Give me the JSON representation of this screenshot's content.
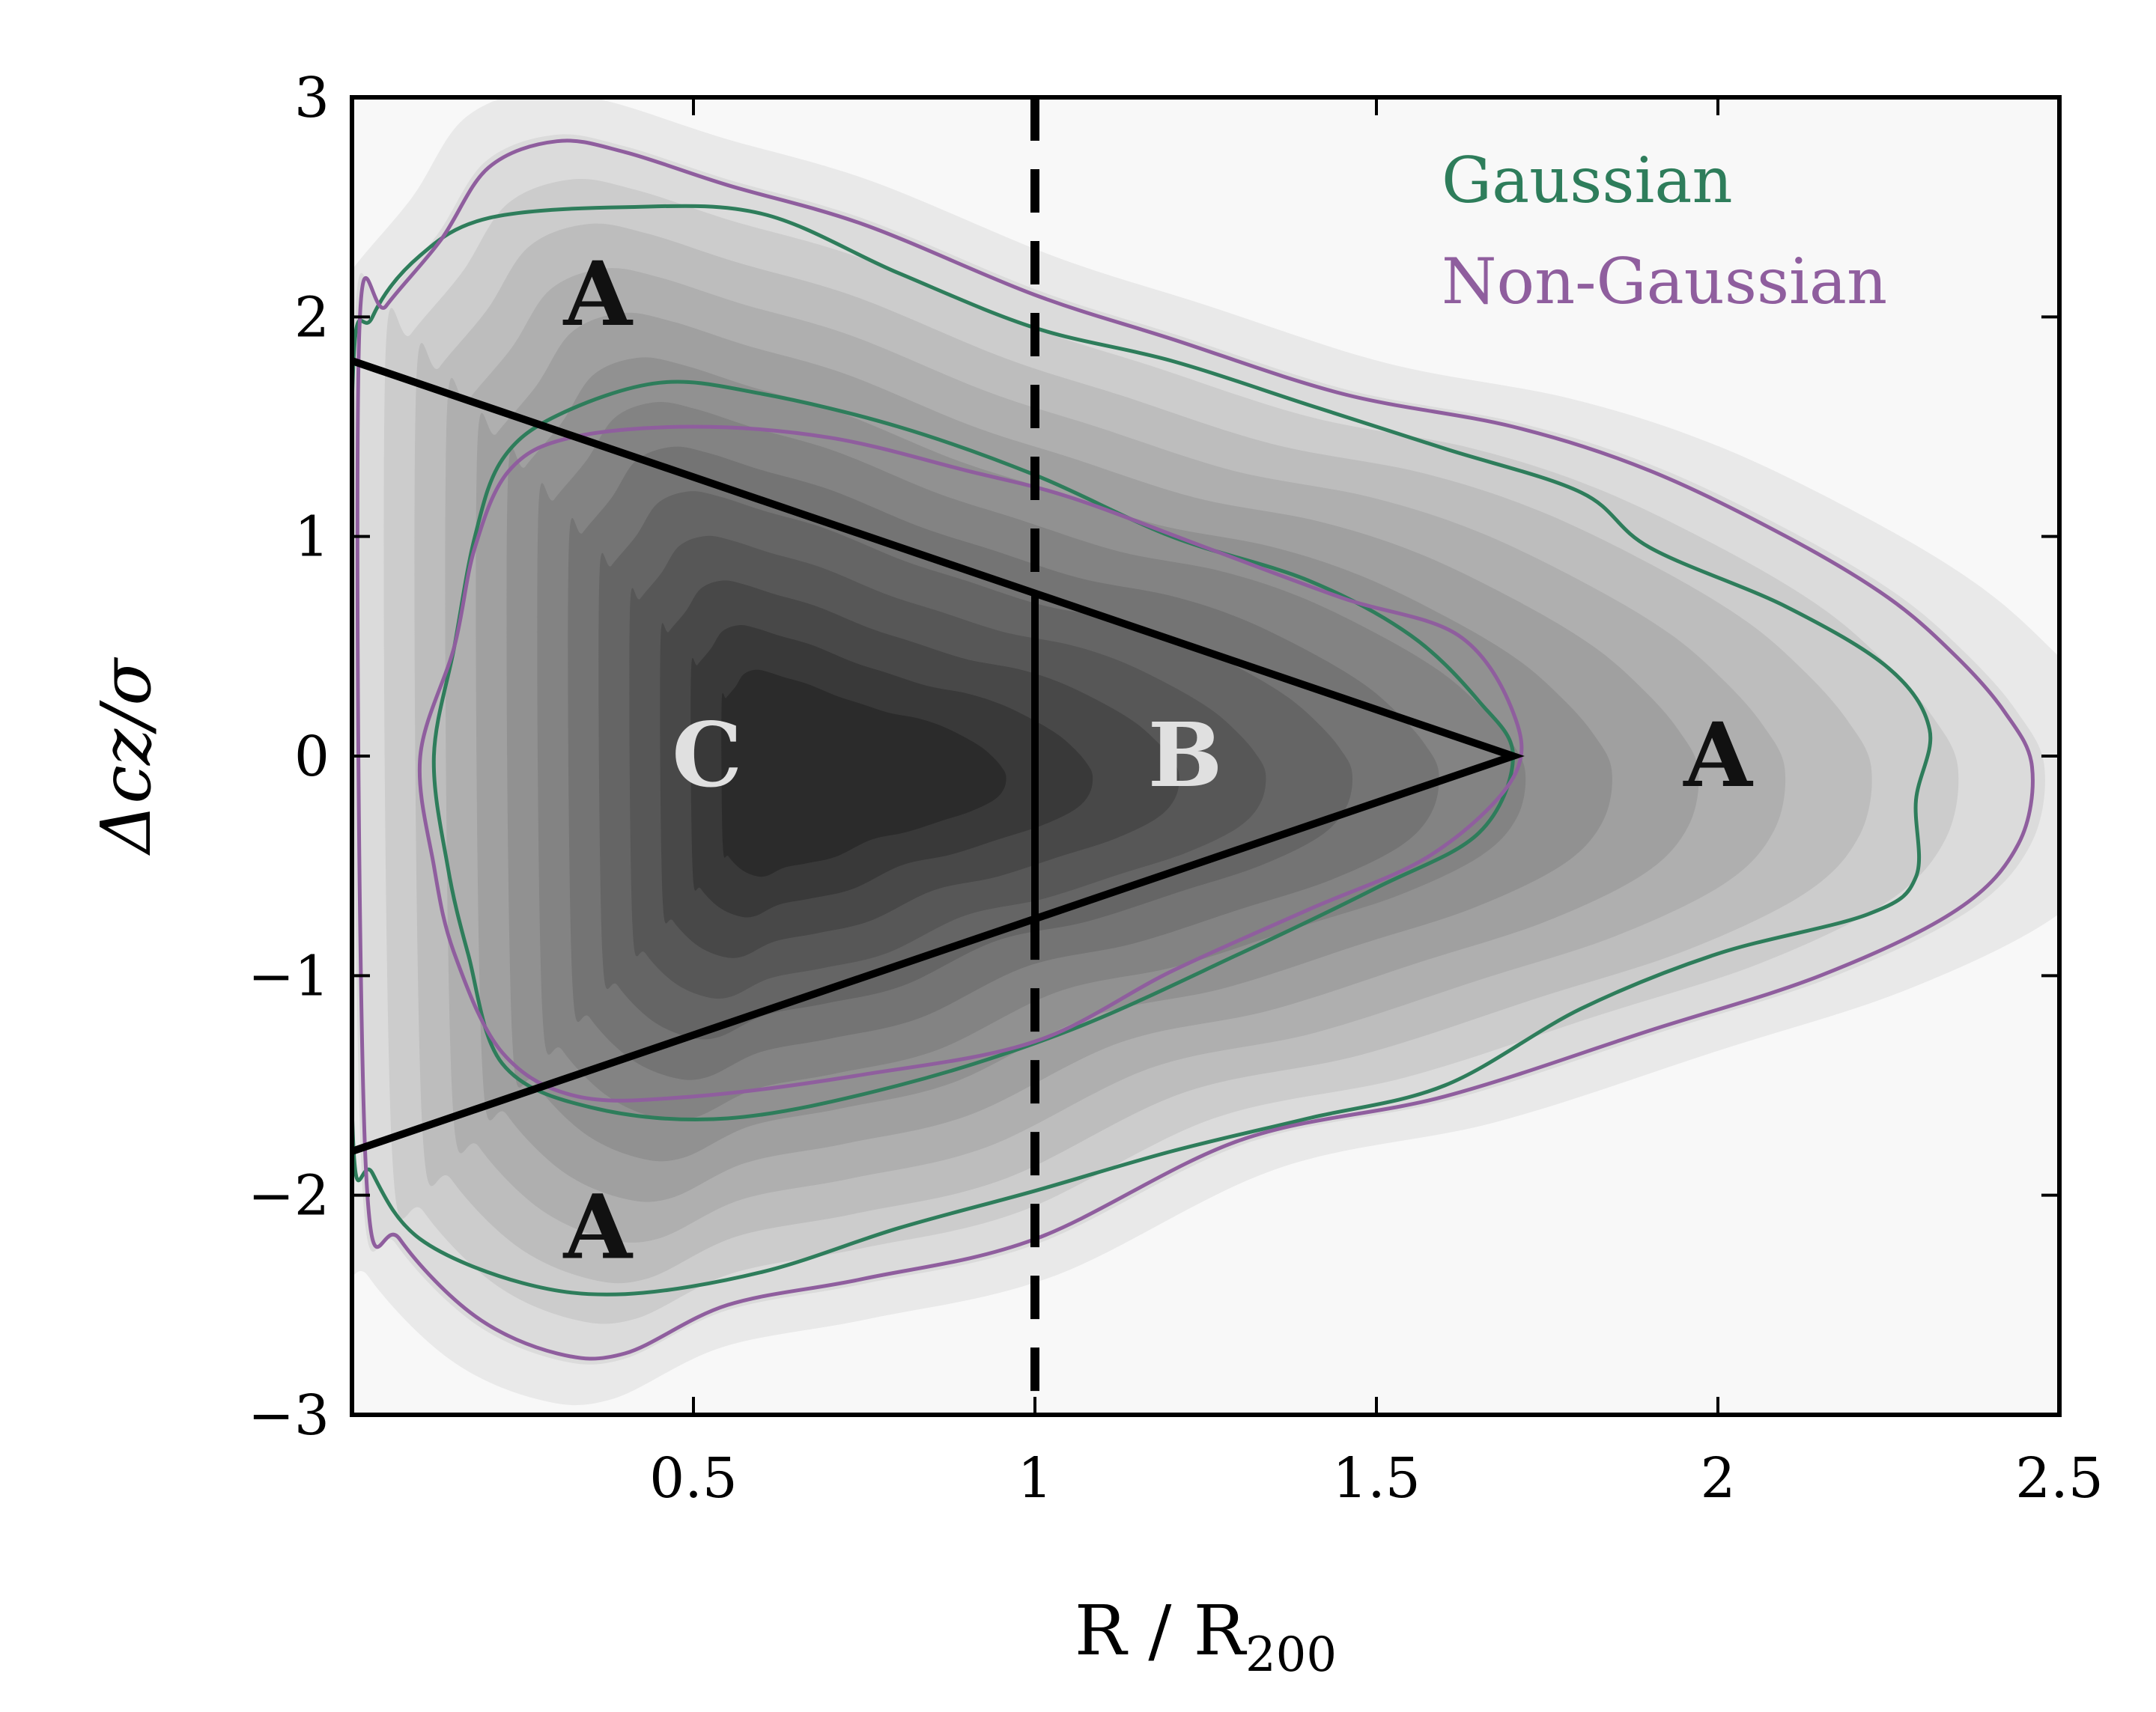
{
  "chart_data": {
    "type": "contour",
    "title": "",
    "xlabel": "R / R200",
    "ylabel": "Δcz/σ",
    "xlim": [
      0,
      2.5
    ],
    "ylim": [
      -3,
      3
    ],
    "x_ticks": [
      {
        "value": 0.5,
        "label": "0.5"
      },
      {
        "value": 1,
        "label": "1"
      },
      {
        "value": 1.5,
        "label": "1.5"
      },
      {
        "value": 2,
        "label": "2"
      },
      {
        "value": 2.5,
        "label": "2.5"
      }
    ],
    "y_ticks": [
      {
        "value": 3,
        "label": "3"
      },
      {
        "value": 2,
        "label": "2"
      },
      {
        "value": 1,
        "label": "1"
      },
      {
        "value": 0,
        "label": "0"
      },
      {
        "value": -1,
        "label": "−1"
      },
      {
        "value": -2,
        "label": "−2"
      },
      {
        "value": -3,
        "label": "−3"
      }
    ],
    "grid": false,
    "legend": {
      "position": "top-right",
      "entries": [
        {
          "label": "Gaussian",
          "color": "#2e7d5b"
        },
        {
          "label": "Non-Gaussian",
          "color": "#8f5e9e"
        }
      ]
    },
    "density_field": {
      "center": [
        0.65,
        -0.1
      ],
      "levels": 14,
      "colormap": [
        "#f8f8f8",
        "#1c1c1c"
      ]
    },
    "contours": [
      {
        "series": "Gaussian",
        "level": "outer",
        "points": [
          [
            0.0,
            1.6
          ],
          [
            0.03,
            2.0
          ],
          [
            0.1,
            2.28
          ],
          [
            0.2,
            2.45
          ],
          [
            0.4,
            2.5
          ],
          [
            0.6,
            2.47
          ],
          [
            0.8,
            2.2
          ],
          [
            1.0,
            1.95
          ],
          [
            1.2,
            1.8
          ],
          [
            1.4,
            1.6
          ],
          [
            1.6,
            1.4
          ],
          [
            1.8,
            1.2
          ],
          [
            1.9,
            0.95
          ],
          [
            2.1,
            0.68
          ],
          [
            2.25,
            0.4
          ],
          [
            2.31,
            0.12
          ],
          [
            2.29,
            -0.2
          ],
          [
            2.29,
            -0.55
          ],
          [
            2.22,
            -0.72
          ],
          [
            2.0,
            -0.9
          ],
          [
            1.8,
            -1.15
          ],
          [
            1.6,
            -1.5
          ],
          [
            1.4,
            -1.65
          ],
          [
            1.2,
            -1.8
          ],
          [
            1.0,
            -1.98
          ],
          [
            0.8,
            -2.15
          ],
          [
            0.6,
            -2.35
          ],
          [
            0.4,
            -2.45
          ],
          [
            0.25,
            -2.4
          ],
          [
            0.1,
            -2.2
          ],
          [
            0.03,
            -1.9
          ],
          [
            0.0,
            -1.6
          ]
        ]
      },
      {
        "series": "Non-Gaussian",
        "level": "outer",
        "points": [
          [
            0.01,
            1.85
          ],
          [
            0.05,
            2.05
          ],
          [
            0.13,
            2.35
          ],
          [
            0.2,
            2.68
          ],
          [
            0.3,
            2.8
          ],
          [
            0.4,
            2.75
          ],
          [
            0.55,
            2.6
          ],
          [
            0.75,
            2.42
          ],
          [
            1.0,
            2.1
          ],
          [
            1.2,
            1.9
          ],
          [
            1.45,
            1.65
          ],
          [
            1.7,
            1.5
          ],
          [
            1.9,
            1.3
          ],
          [
            2.1,
            1.0
          ],
          [
            2.25,
            0.72
          ],
          [
            2.35,
            0.45
          ],
          [
            2.42,
            0.2
          ],
          [
            2.46,
            -0.05
          ],
          [
            2.44,
            -0.4
          ],
          [
            2.35,
            -0.7
          ],
          [
            2.15,
            -1.0
          ],
          [
            1.9,
            -1.25
          ],
          [
            1.6,
            -1.55
          ],
          [
            1.3,
            -1.75
          ],
          [
            1.0,
            -2.2
          ],
          [
            0.75,
            -2.38
          ],
          [
            0.55,
            -2.5
          ],
          [
            0.4,
            -2.72
          ],
          [
            0.3,
            -2.72
          ],
          [
            0.18,
            -2.55
          ],
          [
            0.07,
            -2.2
          ],
          [
            0.02,
            -1.85
          ]
        ]
      },
      {
        "series": "Gaussian",
        "level": "inner",
        "points": [
          [
            0.12,
            0.0
          ],
          [
            0.15,
            0.5
          ],
          [
            0.18,
            1.0
          ],
          [
            0.22,
            1.35
          ],
          [
            0.3,
            1.55
          ],
          [
            0.45,
            1.7
          ],
          [
            0.6,
            1.65
          ],
          [
            0.8,
            1.5
          ],
          [
            1.0,
            1.28
          ],
          [
            1.2,
            1.0
          ],
          [
            1.4,
            0.8
          ],
          [
            1.55,
            0.55
          ],
          [
            1.65,
            0.25
          ],
          [
            1.7,
            0.0
          ],
          [
            1.65,
            -0.35
          ],
          [
            1.5,
            -0.6
          ],
          [
            1.3,
            -0.9
          ],
          [
            1.05,
            -1.25
          ],
          [
            0.8,
            -1.5
          ],
          [
            0.55,
            -1.65
          ],
          [
            0.35,
            -1.6
          ],
          [
            0.22,
            -1.4
          ],
          [
            0.17,
            -0.9
          ],
          [
            0.14,
            -0.5
          ]
        ]
      },
      {
        "series": "Non-Gaussian",
        "level": "inner",
        "points": [
          [
            0.1,
            0.0
          ],
          [
            0.15,
            0.5
          ],
          [
            0.18,
            0.95
          ],
          [
            0.23,
            1.3
          ],
          [
            0.32,
            1.45
          ],
          [
            0.5,
            1.5
          ],
          [
            0.7,
            1.45
          ],
          [
            0.9,
            1.3
          ],
          [
            1.05,
            1.18
          ],
          [
            1.25,
            0.95
          ],
          [
            1.45,
            0.72
          ],
          [
            1.62,
            0.55
          ],
          [
            1.7,
            0.2
          ],
          [
            1.7,
            -0.1
          ],
          [
            1.58,
            -0.45
          ],
          [
            1.4,
            -0.7
          ],
          [
            1.2,
            -0.98
          ],
          [
            1.0,
            -1.3
          ],
          [
            0.75,
            -1.45
          ],
          [
            0.5,
            -1.55
          ],
          [
            0.33,
            -1.55
          ],
          [
            0.22,
            -1.35
          ],
          [
            0.15,
            -0.9
          ],
          [
            0.12,
            -0.5
          ]
        ]
      }
    ],
    "region_boundaries": [
      {
        "style": "solid",
        "points": [
          [
            0,
            1.8
          ],
          [
            1.7,
            0
          ],
          [
            0,
            -1.8
          ]
        ]
      },
      {
        "style": "solid",
        "points": [
          [
            1,
            0.73
          ],
          [
            1,
            -0.73
          ]
        ]
      },
      {
        "style": "dashed",
        "points": [
          [
            1,
            3
          ],
          [
            1,
            0.73
          ]
        ]
      },
      {
        "style": "dashed",
        "points": [
          [
            1,
            -0.73
          ],
          [
            1,
            -3
          ]
        ]
      }
    ],
    "region_labels": [
      {
        "text": "A",
        "x": 0.36,
        "y": 2.1,
        "color": "#111111"
      },
      {
        "text": "A",
        "x": 0.36,
        "y": -2.15,
        "color": "#111111"
      },
      {
        "text": "A",
        "x": 2.0,
        "y": 0.0,
        "color": "#111111"
      },
      {
        "text": "B",
        "x": 1.22,
        "y": 0.0,
        "color": "#e0e0e0"
      },
      {
        "text": "C",
        "x": 0.52,
        "y": 0.0,
        "color": "#e0e0e0"
      }
    ]
  }
}
